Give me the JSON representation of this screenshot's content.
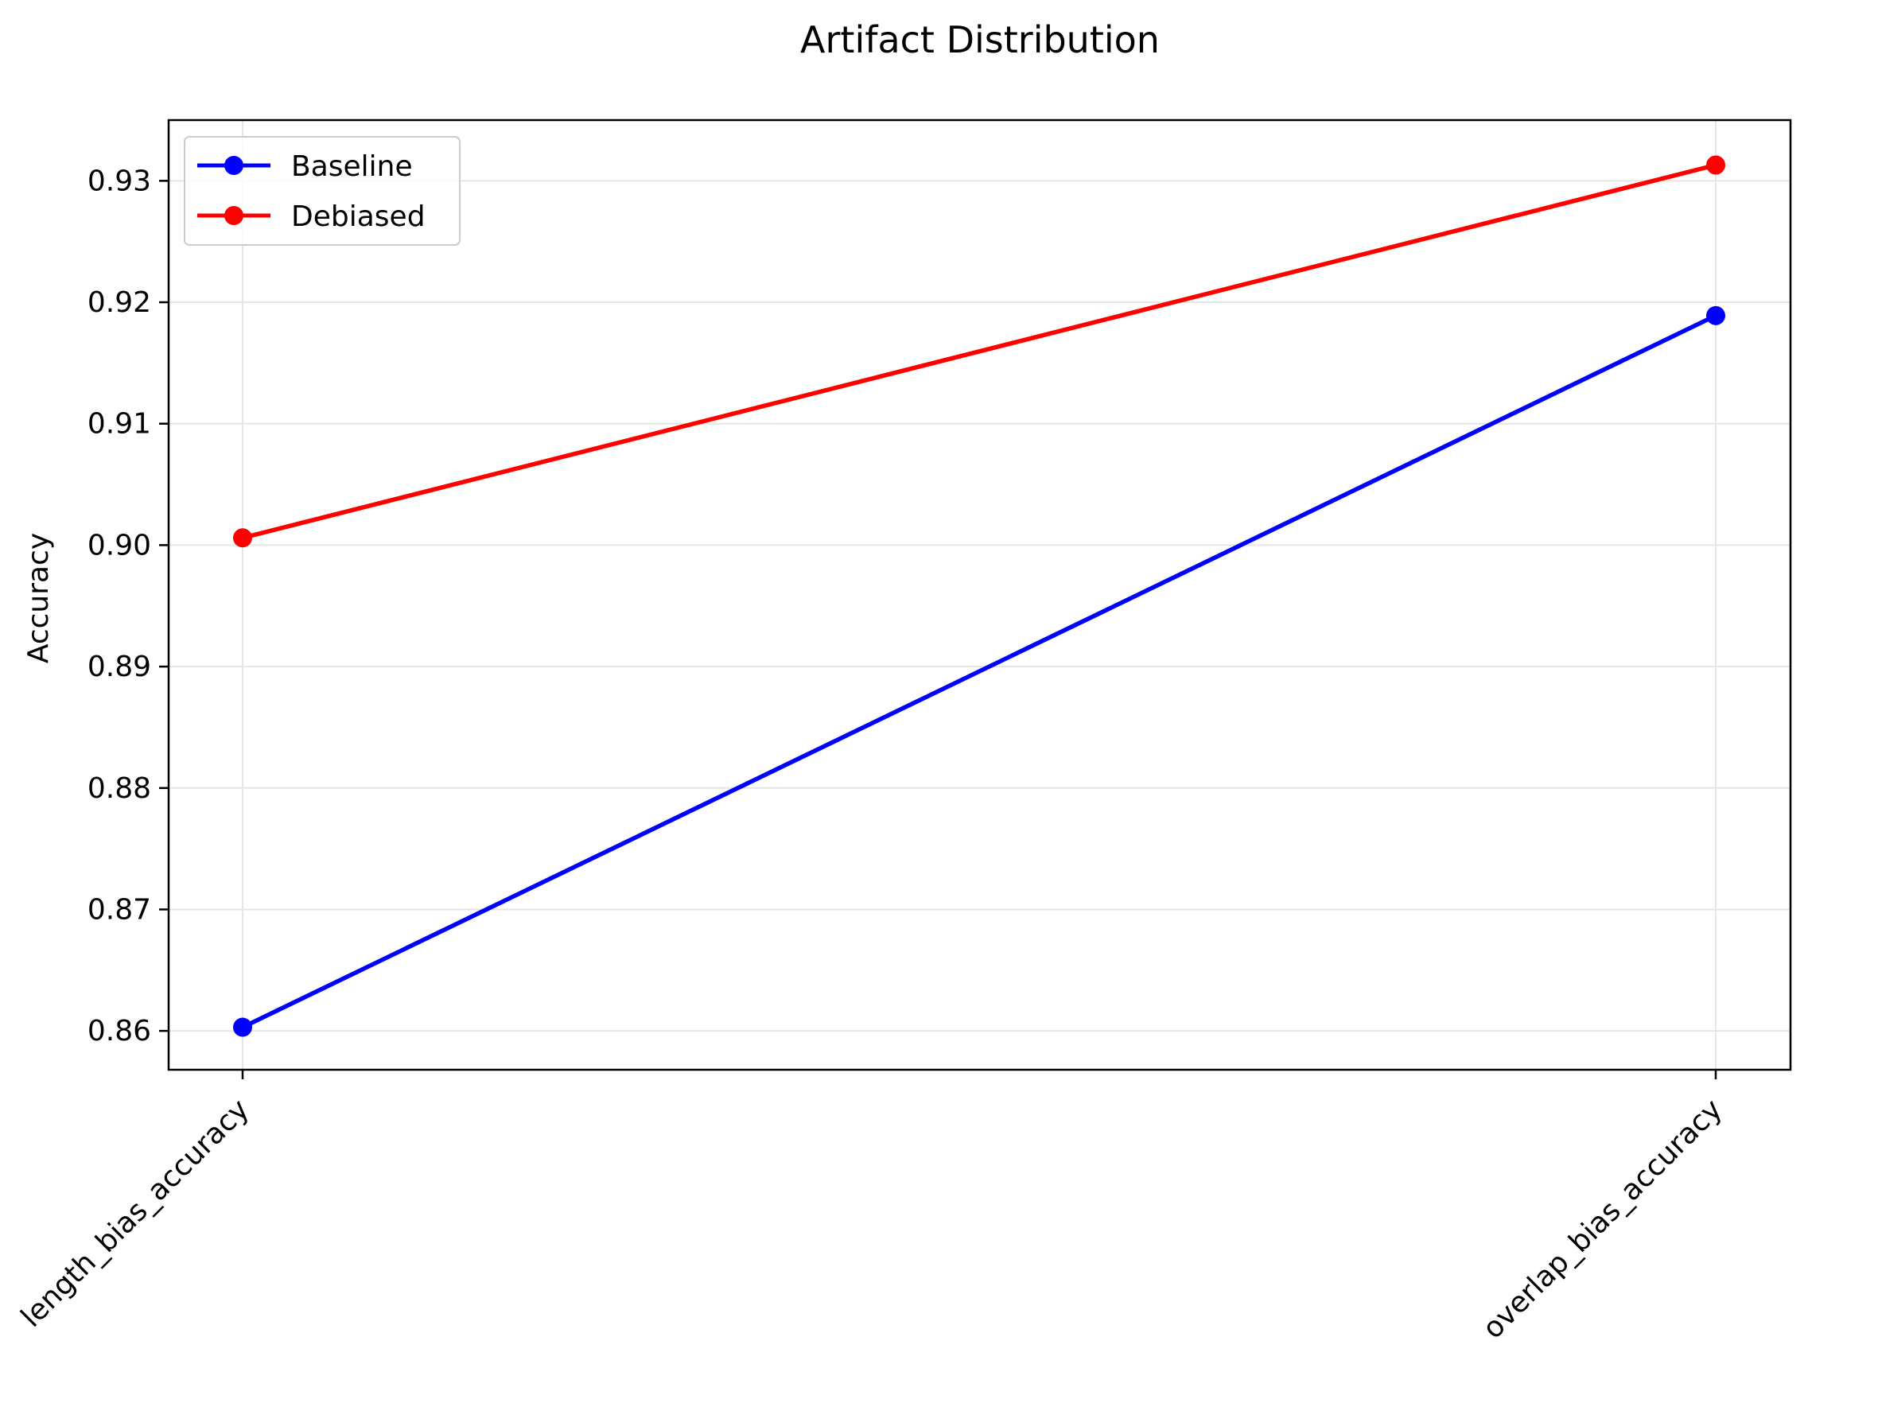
{
  "chart_data": {
    "type": "line",
    "title": "Artifact Distribution",
    "xlabel": "",
    "ylabel": "Accuracy",
    "categories": [
      "length_bias_accuracy",
      "overlap_bias_accuracy"
    ],
    "ylim": [
      0.8568,
      0.935
    ],
    "yticks": [
      0.86,
      0.87,
      0.88,
      0.89,
      0.9,
      0.91,
      0.92,
      0.93
    ],
    "ytick_labels": [
      "0.86",
      "0.87",
      "0.88",
      "0.89",
      "0.90",
      "0.91",
      "0.92",
      "0.93"
    ],
    "grid": true,
    "legend_position": "top-left",
    "series": [
      {
        "name": "Baseline",
        "color": "#0000ff",
        "values": [
          0.8603,
          0.9189
        ]
      },
      {
        "name": "Debiased",
        "color": "#ff0000",
        "values": [
          0.9006,
          0.9313
        ]
      }
    ]
  }
}
